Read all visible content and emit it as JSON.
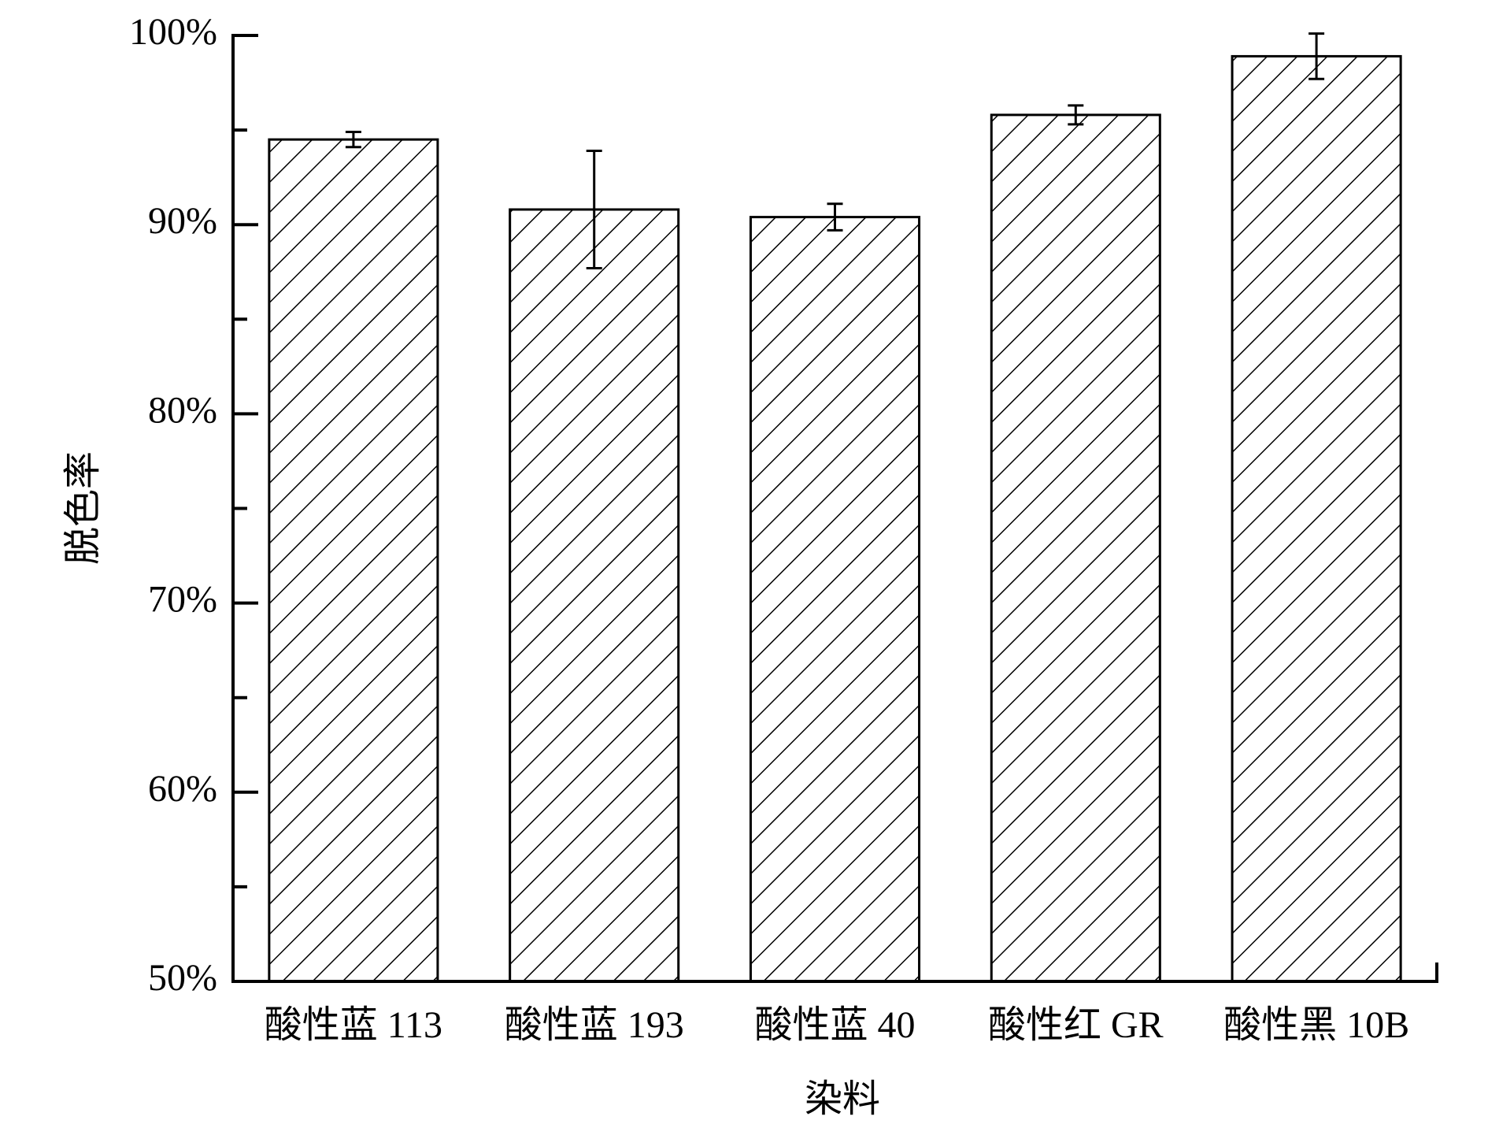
{
  "chart_data": {
    "type": "bar",
    "x_label": "染料",
    "y_label": "脱色率",
    "categories": [
      "酸性蓝 113",
      "酸性蓝 193",
      "酸性蓝 40",
      "酸性红 GR",
      "酸性黑 10B"
    ],
    "values": [
      94.5,
      90.8,
      90.4,
      95.8,
      98.9
    ],
    "errors": [
      0.4,
      3.1,
      0.7,
      0.5,
      1.2
    ],
    "color": "#000000",
    "hatch": true,
    "ylim": [
      50,
      100
    ],
    "yticks": [
      {
        "value": 50,
        "label": "50%"
      },
      {
        "value": 60,
        "label": "60%"
      },
      {
        "value": 70,
        "label": "70%"
      },
      {
        "value": 80,
        "label": "80%"
      },
      {
        "value": 90,
        "label": "90%"
      },
      {
        "value": 100,
        "label": "100%"
      }
    ],
    "minor_yticks": [
      55,
      65,
      75,
      85,
      95
    ],
    "grid": false
  }
}
